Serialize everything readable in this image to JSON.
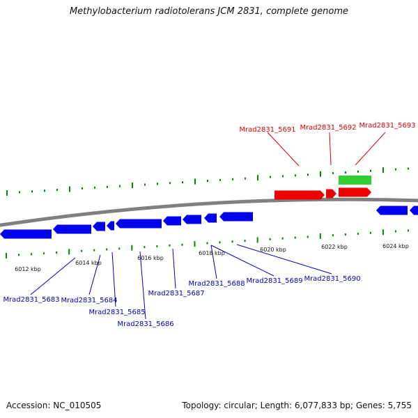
{
  "title": "Methylobacterium radiotolerans JCM 2831, complete genome",
  "footer": {
    "accession": "Accession: NC_010505",
    "summary": "Topology: circular; Length: 6,077,833 bp; Genes: 5,755"
  },
  "colors": {
    "forward_gene": "#ee0000",
    "reverse_gene": "#0000ee",
    "rna_gene": "#33cc33",
    "backbone": "#808080",
    "ticks": "#008800",
    "forward_label": "#dd0000",
    "reverse_label": "#0000bb"
  },
  "scale": {
    "unit": "kbp",
    "labels": [
      "6012 kbp",
      "6014 kbp",
      "6016 kbp",
      "6018 kbp",
      "6020 kbp",
      "6022 kbp",
      "6024 kbp"
    ]
  },
  "forward_labels": [
    "Mrad2831_5691",
    "Mrad2831_5692",
    "Mrad2831_5693"
  ],
  "reverse_labels": [
    "Mrad2831_5683",
    "Mrad2831_5684",
    "Mrad2831_5685",
    "Mrad2831_5686",
    "Mrad2831_5687",
    "Mrad2831_5688",
    "Mrad2831_5689",
    "Mrad2831_5690"
  ]
}
